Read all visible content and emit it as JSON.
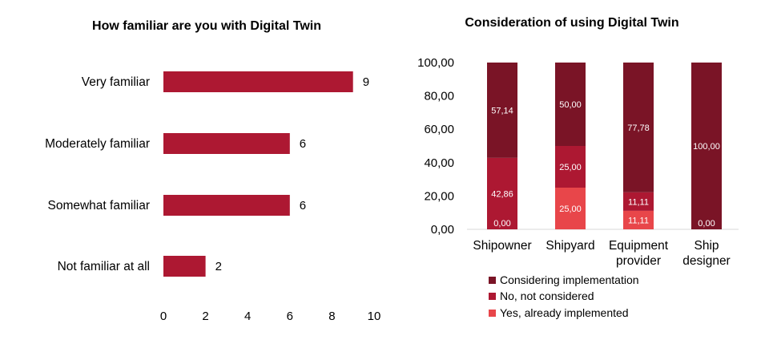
{
  "chart_data": [
    {
      "type": "bar",
      "orientation": "horizontal",
      "title": "How familiar are you with Digital Twin",
      "categories": [
        "Very familiar",
        "Moderately familiar",
        "Somewhat familiar",
        "Not familiar at all"
      ],
      "values": [
        9,
        6,
        6,
        2
      ],
      "xlim": [
        0,
        10
      ],
      "xticks": [
        "0",
        "2",
        "4",
        "6",
        "8",
        "10"
      ],
      "grid": false,
      "color": "#AD1832"
    },
    {
      "type": "bar",
      "stacked": true,
      "title": "Consideration of using Digital Twin",
      "categories": [
        "Shipowner",
        "Shipyard",
        "Equipment provider",
        "Ship designer"
      ],
      "ylim": [
        0,
        100
      ],
      "yticks": [
        "0,00",
        "20,00",
        "40,00",
        "60,00",
        "80,00",
        "100,00"
      ],
      "grid": false,
      "legend_position": "bottom",
      "series": [
        {
          "name": "Yes, already implemented",
          "values": [
            0,
            25,
            11.11,
            0
          ],
          "labels": [
            "0,00",
            "25,00",
            "11,11",
            "0,00"
          ],
          "color": "#E8464A"
        },
        {
          "name": "No, not considered",
          "values": [
            42.86,
            25,
            11.11,
            0
          ],
          "labels": [
            "42,86",
            "25,00",
            "11,11",
            ""
          ],
          "color": "#AD1832"
        },
        {
          "name": "Considering implementation",
          "values": [
            57.14,
            50,
            77.78,
            100
          ],
          "labels": [
            "57,14",
            "50,00",
            "77,78",
            "100,00"
          ],
          "color": "#7A1426"
        }
      ],
      "legend_order": [
        "Considering implementation",
        "No, not considered",
        "Yes, already implemented"
      ]
    }
  ]
}
